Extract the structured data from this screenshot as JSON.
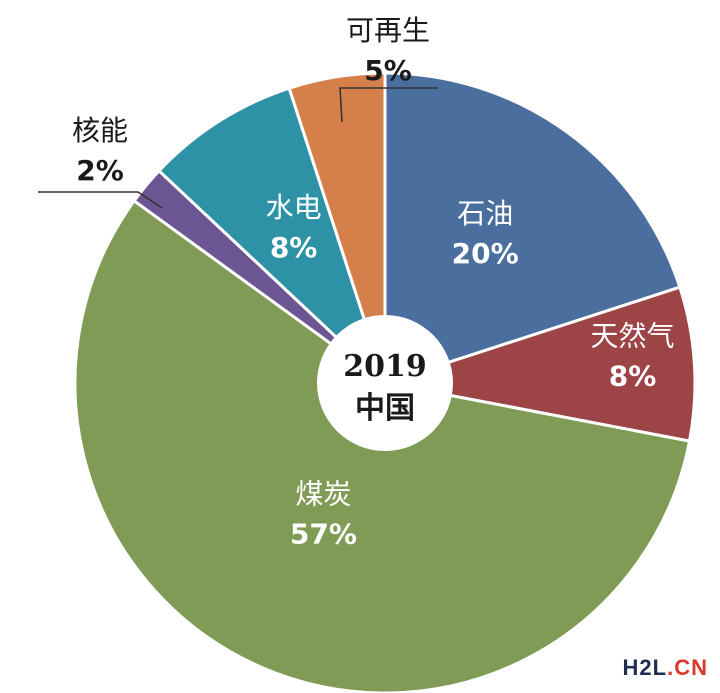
{
  "chart_data": {
    "type": "pie",
    "center_label": {
      "year": "2019",
      "country": "中国"
    },
    "slices": [
      {
        "name": "石油",
        "value": 20,
        "label": "20%",
        "color": "#4a6f9f",
        "label_color": "#ffffff"
      },
      {
        "name": "天然气",
        "value": 8,
        "label": "8%",
        "color": "#9c4446",
        "label_color": "#ffffff"
      },
      {
        "name": "煤炭",
        "value": 57,
        "label": "57%",
        "color": "#7f9b55",
        "label_color": "#ffffff"
      },
      {
        "name": "核能",
        "value": 2,
        "label": "2%",
        "color": "#6b5592",
        "label_color": "#1a1a1a"
      },
      {
        "name": "水电",
        "value": 8,
        "label": "8%",
        "color": "#2e92a6",
        "label_color": "#ffffff"
      },
      {
        "name": "可再生",
        "value": 5,
        "label": "5%",
        "color": "#d57f4b",
        "label_color": "#1a1a1a"
      }
    ]
  },
  "watermark": {
    "part1": "H2L",
    "part2": ".CN"
  }
}
